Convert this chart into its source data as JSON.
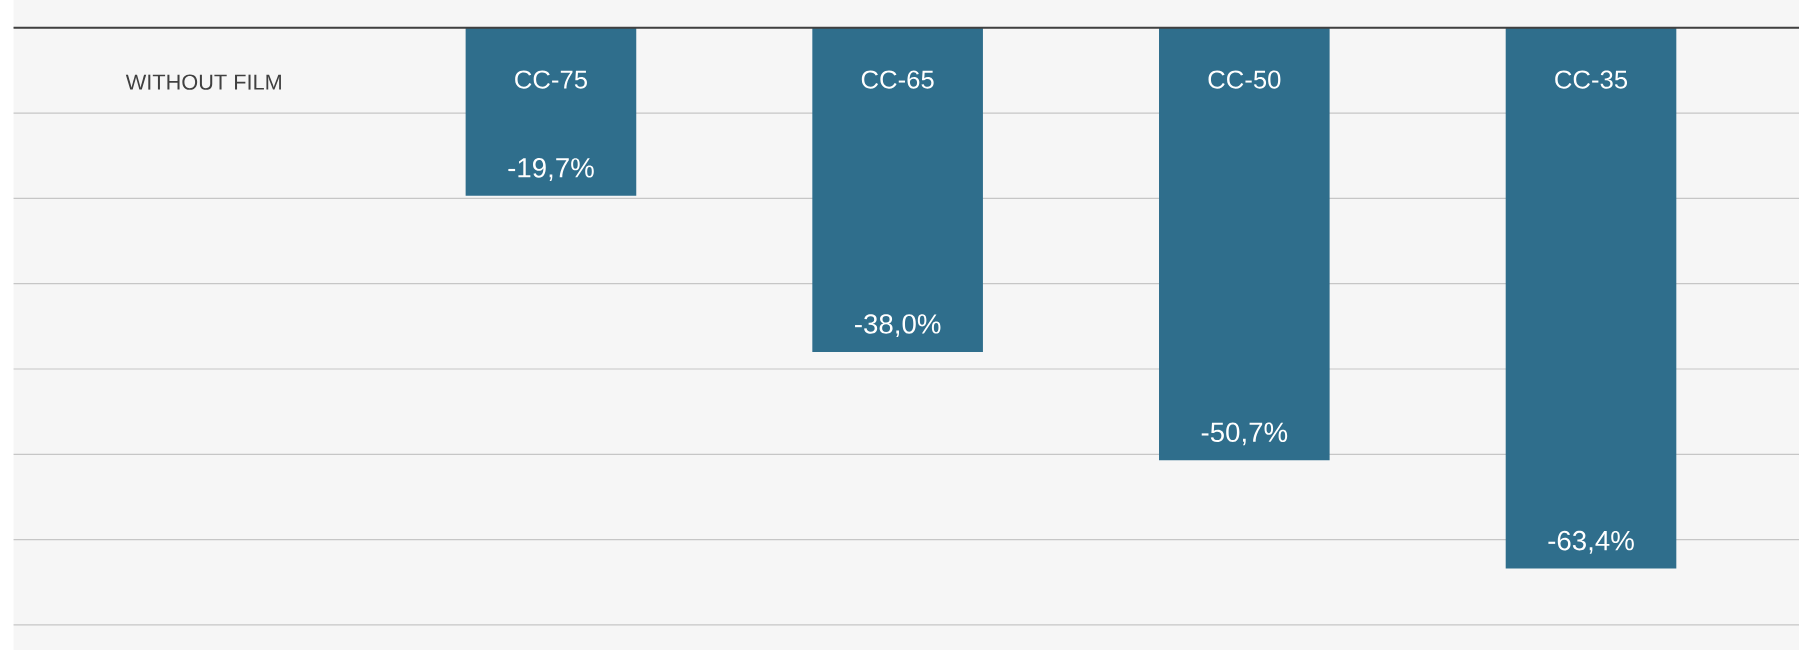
{
  "chart_data": {
    "type": "bar",
    "categories": [
      "CC-75",
      "CC-65",
      "CC-50",
      "CC-35"
    ],
    "series": [
      {
        "name": "WITHOUT FILM",
        "color": "#2f6e8c",
        "values": [
          -19.7,
          -38.0,
          -50.7,
          -63.4
        ],
        "value_labels": [
          "-19,7%",
          "-38,0%",
          "-50,7%",
          "-63,4%"
        ]
      }
    ],
    "ylim": [
      -70,
      0
    ],
    "yticks": [
      {
        "value": 0,
        "label": null
      },
      {
        "value": -10,
        "label": null
      },
      {
        "value": -20,
        "label": null
      },
      {
        "value": -30,
        "label": null
      },
      {
        "value": -40,
        "label": null
      },
      {
        "value": -50,
        "label": null
      },
      {
        "value": -60,
        "label": null
      },
      {
        "value": -70,
        "label": null
      }
    ],
    "grid": "y",
    "tick_labels": "x"
  }
}
